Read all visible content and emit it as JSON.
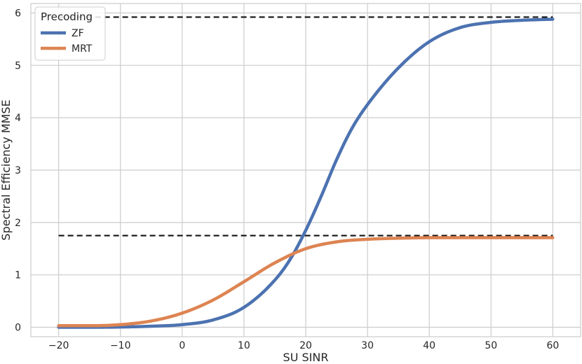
{
  "chart_data": {
    "type": "line",
    "xlabel": "SU SINR",
    "ylabel": "Spectral Efficiency MMSE",
    "xlim": [
      -24.5,
      64.5
    ],
    "ylim": [
      -0.18,
      6.18
    ],
    "xticks": [
      -20,
      -10,
      0,
      10,
      20,
      30,
      40,
      50,
      60
    ],
    "xtick_labels": [
      "−20",
      "−10",
      "0",
      "10",
      "20",
      "30",
      "40",
      "50",
      "60"
    ],
    "yticks": [
      0,
      1,
      2,
      3,
      4,
      5,
      6
    ],
    "ytick_labels": [
      "0",
      "1",
      "2",
      "3",
      "4",
      "5",
      "6"
    ],
    "grid": true,
    "legend": {
      "title": "Precoding",
      "placement": "top-left"
    },
    "series": [
      {
        "name": "ZF",
        "color": "#4c72b0",
        "x": [
          -20,
          -15,
          -10,
          -5,
          0,
          5,
          10,
          15,
          17.5,
          20,
          22.5,
          25,
          27.5,
          30,
          35,
          40,
          45,
          50,
          55,
          60
        ],
        "y": [
          0.0,
          0.0,
          0.005,
          0.02,
          0.05,
          0.14,
          0.38,
          0.9,
          1.3,
          1.85,
          2.5,
          3.2,
          3.8,
          4.25,
          4.95,
          5.45,
          5.72,
          5.82,
          5.86,
          5.88
        ]
      },
      {
        "name": "MRT",
        "color": "#dd8452",
        "x": [
          -20,
          -15,
          -10,
          -5,
          0,
          5,
          10,
          15,
          20,
          25,
          30,
          35,
          40,
          50,
          60
        ],
        "y": [
          0.03,
          0.03,
          0.05,
          0.12,
          0.27,
          0.52,
          0.87,
          1.23,
          1.5,
          1.63,
          1.68,
          1.7,
          1.71,
          1.71,
          1.71
        ]
      }
    ],
    "reference_lines": [
      {
        "y": 5.92,
        "x_range": [
          -20,
          60
        ],
        "style": "dashed",
        "color": "#111111"
      },
      {
        "y": 1.75,
        "x_range": [
          -20,
          60
        ],
        "style": "dashed",
        "color": "#111111"
      }
    ]
  }
}
